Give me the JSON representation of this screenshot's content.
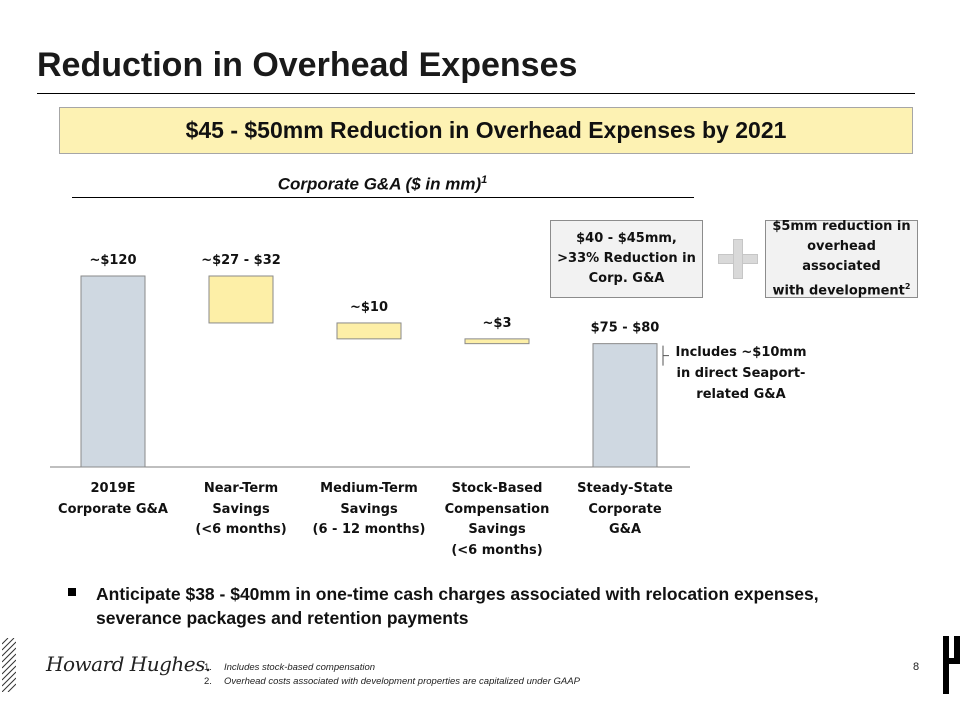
{
  "page": {
    "title": "Reduction in Overhead Expenses",
    "banner": "$45 - $50mm Reduction in Overhead Expenses by 2021",
    "page_number": "8"
  },
  "chart_data": {
    "type": "bar",
    "subtype": "waterfall",
    "title": "Corporate G&A ($ in mm)",
    "title_footnote": "1",
    "categories": [
      [
        "2019E",
        "Corporate G&A"
      ],
      [
        "Near-Term",
        "Savings",
        "(<6 months)"
      ],
      [
        "Medium-Term",
        "Savings",
        "(6 - 12 months)"
      ],
      [
        "Stock-Based",
        "Compensation",
        "Savings",
        "(<6 months)"
      ],
      [
        "Steady-State",
        "Corporate",
        "G&A"
      ]
    ],
    "values": [
      {
        "kind": "total",
        "value": 120,
        "label": "~$120"
      },
      {
        "kind": "decrease",
        "low": 27,
        "high": 32,
        "label": "~$27 - $32"
      },
      {
        "kind": "decrease",
        "value": 10,
        "label": "~$10"
      },
      {
        "kind": "decrease",
        "value": 3,
        "label": "~$3"
      },
      {
        "kind": "total",
        "low": 75,
        "high": 80,
        "label": "$75 - $80"
      }
    ],
    "ylim": [
      0,
      120
    ],
    "colors": {
      "total": "#cfd8e1",
      "decrease": "#fdefa7",
      "outline": "#8a8a8a"
    },
    "grid": false,
    "legend": "none"
  },
  "callouts": {
    "reduction_box": [
      "$40 - $45mm,",
      ">33% Reduction in",
      "Corp. G&A"
    ],
    "development_box": [
      "$5mm reduction in",
      "overhead associated",
      "with development"
    ],
    "development_footnote": "2",
    "plus_icon": "plus-icon",
    "seaport_note": [
      "Includes ~$10mm",
      "in direct Seaport-",
      "related G&A"
    ]
  },
  "bullet": "Anticipate $38 - $40mm in one-time cash charges associated with relocation expenses, severance packages and retention payments",
  "footer": {
    "logo_text": "Howard Hughes.",
    "footnotes": [
      {
        "num": "1.",
        "text": "Includes stock-based compensation"
      },
      {
        "num": "2.",
        "text": "Overhead costs associated with development properties are capitalized under GAAP"
      }
    ]
  }
}
